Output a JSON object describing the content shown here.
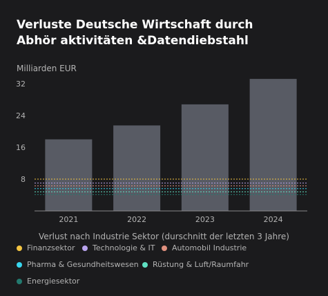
{
  "title_line1": "Verluste Deutsche Wirtschaft durch",
  "title_line2": "Abhör aktivitäten &Datendiebstahl",
  "unit_label": "Milliarden EUR",
  "legend_title": "Verlust nach Industrie Sektor (durschnitt der letzten 3 Jahre)",
  "chart_data": {
    "type": "bar",
    "categories": [
      "2021",
      "2022",
      "2023",
      "2024"
    ],
    "values": [
      18,
      21.5,
      26.8,
      33.2
    ],
    "bar_color": "#585b64",
    "y_ticks": [
      8,
      16,
      24,
      32
    ],
    "ylim": [
      0,
      35
    ],
    "ylabel": "Milliarden EUR",
    "reference_lines": [
      {
        "name": "Finanzsektor",
        "value": 8.0,
        "color": "#f4c542"
      },
      {
        "name": "Technologie & IT",
        "value": 7.0,
        "color": "#b9a4ee"
      },
      {
        "name": "Automobil Industrie",
        "value": 6.3,
        "color": "#e0907f"
      },
      {
        "name": "Pharma & Gesundheitswesen",
        "value": 5.6,
        "color": "#38d6ee"
      },
      {
        "name": "Rüstung & Luft/Raumfahr",
        "value": 4.8,
        "color": "#5fe0c2"
      },
      {
        "name": "Energiesektor",
        "value": 4.1,
        "color": "#237a6f"
      }
    ]
  }
}
